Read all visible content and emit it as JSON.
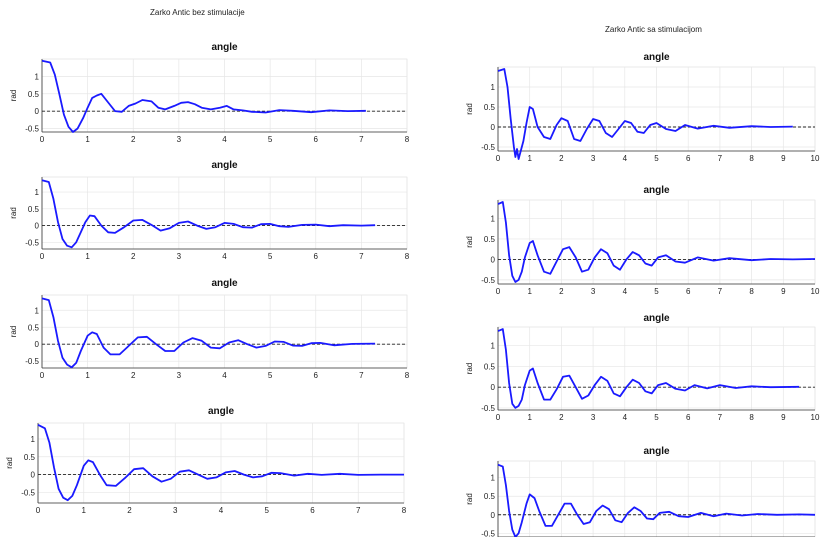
{
  "figure": {
    "left_title": "Zarko Antic bez stimulacije",
    "right_title": "Zarko Antic sa stimulacijom"
  },
  "colors": {
    "series": "#1a1aff",
    "reference": "#222222",
    "grid": "#e6e6e6",
    "axis": "#333333"
  },
  "chart_data": [
    {
      "type": "line",
      "column": "left",
      "row": 1,
      "title": "angle",
      "ylabel": "rad",
      "xlim": [
        0,
        8
      ],
      "ylim": [
        -0.6,
        1.5
      ],
      "xticks": [
        "0",
        "1",
        "2",
        "3",
        "4",
        "5",
        "6",
        "7",
        "8"
      ],
      "yticks": [
        "-0.5",
        "0",
        "0.5",
        "1"
      ],
      "ytick_values": [
        -0.5,
        0,
        0.5,
        1
      ],
      "reference_y": 0,
      "series": [
        {
          "x": [
            0,
            0.18,
            0.28,
            0.38,
            0.48,
            0.58,
            0.68,
            0.78,
            0.9,
            1.0,
            1.1,
            1.2,
            1.3,
            1.45,
            1.6,
            1.75,
            1.9,
            2.05,
            2.2,
            2.4,
            2.55,
            2.7,
            2.9,
            3.05,
            3.2,
            3.35,
            3.5,
            3.7,
            3.9,
            4.05,
            4.2,
            4.4,
            4.6,
            4.9,
            5.2,
            5.5,
            5.9,
            6.3,
            6.7,
            7.1
          ],
          "y": [
            1.45,
            1.4,
            1.05,
            0.5,
            -0.1,
            -0.45,
            -0.6,
            -0.5,
            -0.2,
            0.1,
            0.38,
            0.45,
            0.5,
            0.25,
            0.0,
            -0.02,
            0.15,
            0.22,
            0.32,
            0.28,
            0.1,
            0.05,
            0.15,
            0.24,
            0.26,
            0.2,
            0.1,
            0.05,
            0.1,
            0.15,
            0.05,
            0.02,
            -0.02,
            -0.04,
            0.03,
            0.01,
            -0.03,
            0.02,
            0.0,
            0.01
          ]
        }
      ]
    },
    {
      "type": "line",
      "column": "left",
      "row": 2,
      "title": "angle",
      "ylabel": "rad",
      "xlim": [
        0,
        8
      ],
      "ylim": [
        -0.7,
        1.45
      ],
      "xticks": [
        "0",
        "1",
        "2",
        "3",
        "4",
        "5",
        "6",
        "7",
        "8"
      ],
      "yticks": [
        "-0.5",
        "0",
        "0.5",
        "1"
      ],
      "ytick_values": [
        -0.5,
        0,
        0.5,
        1
      ],
      "reference_y": 0,
      "series": [
        {
          "x": [
            0,
            0.15,
            0.25,
            0.35,
            0.45,
            0.55,
            0.65,
            0.75,
            0.85,
            0.95,
            1.05,
            1.15,
            1.3,
            1.45,
            1.6,
            1.8,
            2.0,
            2.2,
            2.4,
            2.6,
            2.8,
            3.0,
            3.2,
            3.4,
            3.6,
            3.8,
            4.0,
            4.2,
            4.4,
            4.6,
            4.8,
            5.0,
            5.2,
            5.4,
            5.7,
            6.0,
            6.3,
            6.6,
            7.0,
            7.3
          ],
          "y": [
            1.35,
            1.3,
            0.8,
            0.1,
            -0.4,
            -0.6,
            -0.65,
            -0.5,
            -0.2,
            0.1,
            0.3,
            0.28,
            0.0,
            -0.2,
            -0.22,
            -0.05,
            0.15,
            0.17,
            0.02,
            -0.15,
            -0.08,
            0.08,
            0.12,
            0.0,
            -0.1,
            -0.05,
            0.08,
            0.05,
            -0.05,
            -0.06,
            0.04,
            0.05,
            -0.02,
            -0.04,
            0.02,
            0.03,
            -0.02,
            0.01,
            0.0,
            0.01
          ]
        }
      ]
    },
    {
      "type": "line",
      "column": "left",
      "row": 3,
      "title": "angle",
      "ylabel": "rad",
      "xlim": [
        0,
        8
      ],
      "ylim": [
        -0.7,
        1.45
      ],
      "xticks": [
        "0",
        "1",
        "2",
        "3",
        "4",
        "5",
        "6",
        "7",
        "8"
      ],
      "yticks": [
        "-0.5",
        "0",
        "0.5",
        "1"
      ],
      "ytick_values": [
        -0.5,
        0,
        0.5,
        1
      ],
      "reference_y": 0,
      "series": [
        {
          "x": [
            0,
            0.15,
            0.25,
            0.35,
            0.45,
            0.55,
            0.65,
            0.75,
            0.85,
            1.0,
            1.1,
            1.2,
            1.35,
            1.5,
            1.7,
            1.9,
            2.1,
            2.3,
            2.5,
            2.7,
            2.9,
            3.1,
            3.3,
            3.5,
            3.7,
            3.9,
            4.1,
            4.3,
            4.5,
            4.7,
            4.9,
            5.1,
            5.3,
            5.5,
            5.7,
            5.9,
            6.1,
            6.4,
            6.8,
            7.3
          ],
          "y": [
            1.35,
            1.3,
            0.8,
            0.1,
            -0.4,
            -0.6,
            -0.68,
            -0.55,
            -0.2,
            0.25,
            0.35,
            0.3,
            -0.1,
            -0.3,
            -0.3,
            -0.05,
            0.2,
            0.22,
            0.0,
            -0.2,
            -0.2,
            0.05,
            0.18,
            0.1,
            -0.1,
            -0.12,
            0.05,
            0.12,
            0.0,
            -0.1,
            -0.05,
            0.08,
            0.07,
            -0.04,
            -0.05,
            0.03,
            0.04,
            -0.03,
            0.01,
            0.02
          ]
        }
      ]
    },
    {
      "type": "line",
      "column": "left",
      "row": 4,
      "title": "angle",
      "ylabel": "rad",
      "xlim": [
        0,
        8
      ],
      "ylim": [
        -0.8,
        1.45
      ],
      "xticks": [
        "0",
        "1",
        "2",
        "3",
        "4",
        "5",
        "6",
        "7",
        "8"
      ],
      "yticks": [
        "-0.5",
        "0",
        "0.5",
        "1"
      ],
      "ytick_values": [
        -0.5,
        0,
        0.5,
        1
      ],
      "reference_y": 0,
      "series": [
        {
          "x": [
            0,
            0.15,
            0.25,
            0.35,
            0.45,
            0.55,
            0.65,
            0.75,
            0.85,
            1.0,
            1.1,
            1.2,
            1.35,
            1.5,
            1.7,
            1.9,
            2.1,
            2.3,
            2.5,
            2.7,
            2.9,
            3.1,
            3.3,
            3.5,
            3.7,
            3.9,
            4.1,
            4.3,
            4.5,
            4.7,
            4.9,
            5.1,
            5.3,
            5.6,
            5.9,
            6.2,
            6.6,
            7.0,
            7.5,
            8.0
          ],
          "y": [
            1.4,
            1.3,
            0.9,
            0.2,
            -0.4,
            -0.65,
            -0.72,
            -0.6,
            -0.3,
            0.25,
            0.4,
            0.35,
            0.0,
            -0.3,
            -0.32,
            -0.1,
            0.15,
            0.18,
            -0.05,
            -0.2,
            -0.12,
            0.08,
            0.12,
            0.0,
            -0.12,
            -0.08,
            0.06,
            0.1,
            0.0,
            -0.08,
            -0.05,
            0.05,
            0.04,
            -0.03,
            0.02,
            -0.01,
            0.02,
            -0.01,
            0.0,
            0.0
          ]
        }
      ]
    },
    {
      "type": "line",
      "column": "right",
      "row": 1,
      "title": "angle",
      "ylabel": "rad",
      "xlim": [
        0,
        10
      ],
      "ylim": [
        -0.6,
        1.5
      ],
      "xticks": [
        "0",
        "1",
        "2",
        "3",
        "4",
        "5",
        "6",
        "7",
        "8",
        "9",
        "10"
      ],
      "yticks": [
        "-0.5",
        "0",
        "0.5",
        "1"
      ],
      "ytick_values": [
        -0.5,
        0,
        0.5,
        1
      ],
      "reference_y": 0,
      "series": [
        {
          "x": [
            0,
            0.2,
            0.3,
            0.4,
            0.5,
            0.55,
            0.6,
            0.65,
            0.7,
            0.8,
            0.9,
            1.0,
            1.1,
            1.25,
            1.45,
            1.65,
            1.85,
            2.0,
            2.2,
            2.4,
            2.6,
            2.8,
            3.0,
            3.2,
            3.4,
            3.6,
            3.8,
            4.0,
            4.2,
            4.4,
            4.6,
            4.8,
            5.0,
            5.3,
            5.6,
            5.9,
            6.3,
            6.8,
            7.3,
            8.0,
            8.6,
            9.3
          ],
          "y": [
            1.4,
            1.45,
            1.0,
            0.2,
            -0.5,
            -0.75,
            -0.55,
            -0.8,
            -0.65,
            -0.35,
            0.1,
            0.5,
            0.45,
            0.0,
            -0.25,
            -0.3,
            0.05,
            0.22,
            0.15,
            -0.3,
            -0.35,
            -0.05,
            0.2,
            0.15,
            -0.15,
            -0.25,
            -0.05,
            0.15,
            0.1,
            -0.12,
            -0.15,
            0.05,
            0.1,
            -0.05,
            -0.1,
            0.05,
            -0.04,
            0.03,
            -0.02,
            0.02,
            0.0,
            0.01
          ]
        }
      ]
    },
    {
      "type": "line",
      "column": "right",
      "row": 2,
      "title": "angle",
      "ylabel": "rad",
      "xlim": [
        0,
        10
      ],
      "ylim": [
        -0.6,
        1.45
      ],
      "xticks": [
        "0",
        "1",
        "2",
        "3",
        "4",
        "5",
        "6",
        "7",
        "8",
        "9",
        "10"
      ],
      "yticks": [
        "-0.5",
        "0",
        "0.5",
        "1"
      ],
      "ytick_values": [
        -0.5,
        0,
        0.5,
        1
      ],
      "reference_y": 0,
      "series": [
        {
          "x": [
            0,
            0.15,
            0.25,
            0.35,
            0.45,
            0.55,
            0.65,
            0.75,
            0.85,
            1.0,
            1.1,
            1.25,
            1.45,
            1.65,
            1.85,
            2.05,
            2.25,
            2.45,
            2.65,
            2.85,
            3.05,
            3.25,
            3.45,
            3.65,
            3.85,
            4.05,
            4.25,
            4.45,
            4.65,
            4.85,
            5.05,
            5.3,
            5.6,
            5.9,
            6.3,
            6.8,
            7.3,
            8.0,
            8.6,
            9.3,
            10.0
          ],
          "y": [
            1.35,
            1.4,
            0.9,
            0.1,
            -0.4,
            -0.55,
            -0.5,
            -0.3,
            0.05,
            0.4,
            0.45,
            0.1,
            -0.3,
            -0.35,
            -0.05,
            0.25,
            0.3,
            0.05,
            -0.3,
            -0.25,
            0.05,
            0.25,
            0.15,
            -0.15,
            -0.25,
            0.0,
            0.18,
            0.1,
            -0.1,
            -0.15,
            0.05,
            0.1,
            -0.05,
            -0.08,
            0.05,
            -0.03,
            0.03,
            -0.02,
            0.01,
            0.0,
            0.01
          ]
        }
      ]
    },
    {
      "type": "line",
      "column": "right",
      "row": 3,
      "title": "angle",
      "ylabel": "rad",
      "xlim": [
        0,
        10
      ],
      "ylim": [
        -0.55,
        1.45
      ],
      "xticks": [
        "0",
        "1",
        "2",
        "3",
        "4",
        "5",
        "6",
        "7",
        "8",
        "9",
        "10"
      ],
      "yticks": [
        "-0.5",
        "0",
        "0.5",
        "1"
      ],
      "ytick_values": [
        -0.5,
        0,
        0.5,
        1
      ],
      "reference_y": 0,
      "series": [
        {
          "x": [
            0,
            0.15,
            0.25,
            0.35,
            0.45,
            0.55,
            0.65,
            0.75,
            0.85,
            1.0,
            1.1,
            1.25,
            1.45,
            1.65,
            1.85,
            2.05,
            2.25,
            2.45,
            2.65,
            2.85,
            3.05,
            3.25,
            3.45,
            3.65,
            3.85,
            4.05,
            4.25,
            4.45,
            4.65,
            4.85,
            5.05,
            5.3,
            5.6,
            5.9,
            6.2,
            6.6,
            7.0,
            7.5,
            8.0,
            8.6,
            9.5
          ],
          "y": [
            1.35,
            1.4,
            0.9,
            0.1,
            -0.4,
            -0.5,
            -0.45,
            -0.3,
            0.05,
            0.4,
            0.45,
            0.1,
            -0.3,
            -0.3,
            -0.05,
            0.25,
            0.28,
            0.0,
            -0.28,
            -0.2,
            0.05,
            0.25,
            0.15,
            -0.15,
            -0.22,
            0.0,
            0.18,
            0.1,
            -0.1,
            -0.15,
            0.05,
            0.1,
            -0.04,
            -0.08,
            0.05,
            -0.03,
            0.05,
            -0.02,
            0.02,
            0.0,
            0.01
          ]
        }
      ]
    },
    {
      "type": "line",
      "column": "right",
      "row": 4,
      "title": "angle",
      "ylabel": "rad",
      "xlim": [
        0,
        10
      ],
      "ylim": [
        -0.6,
        1.45
      ],
      "xticks": [],
      "yticks": [
        "-0.5",
        "0",
        "0.5",
        "1"
      ],
      "ytick_values": [
        -0.5,
        0,
        0.5,
        1
      ],
      "reference_y": 0,
      "series": [
        {
          "x": [
            0,
            0.15,
            0.25,
            0.35,
            0.45,
            0.55,
            0.65,
            0.75,
            0.9,
            1.0,
            1.15,
            1.3,
            1.5,
            1.7,
            1.9,
            2.1,
            2.3,
            2.5,
            2.7,
            2.9,
            3.1,
            3.3,
            3.5,
            3.7,
            3.9,
            4.1,
            4.3,
            4.5,
            4.7,
            4.9,
            5.1,
            5.4,
            5.7,
            6.0,
            6.4,
            6.8,
            7.2,
            7.7,
            8.2,
            8.8,
            9.5,
            10.0
          ],
          "y": [
            1.35,
            1.3,
            0.8,
            0.1,
            -0.4,
            -0.6,
            -0.5,
            -0.2,
            0.3,
            0.55,
            0.45,
            0.1,
            -0.3,
            -0.3,
            0.0,
            0.3,
            0.3,
            0.0,
            -0.25,
            -0.2,
            0.1,
            0.25,
            0.15,
            -0.15,
            -0.2,
            0.05,
            0.2,
            0.1,
            -0.1,
            -0.12,
            0.05,
            0.08,
            -0.04,
            -0.06,
            0.05,
            -0.04,
            0.03,
            -0.02,
            0.02,
            0.0,
            0.01,
            0.0
          ]
        }
      ]
    }
  ]
}
